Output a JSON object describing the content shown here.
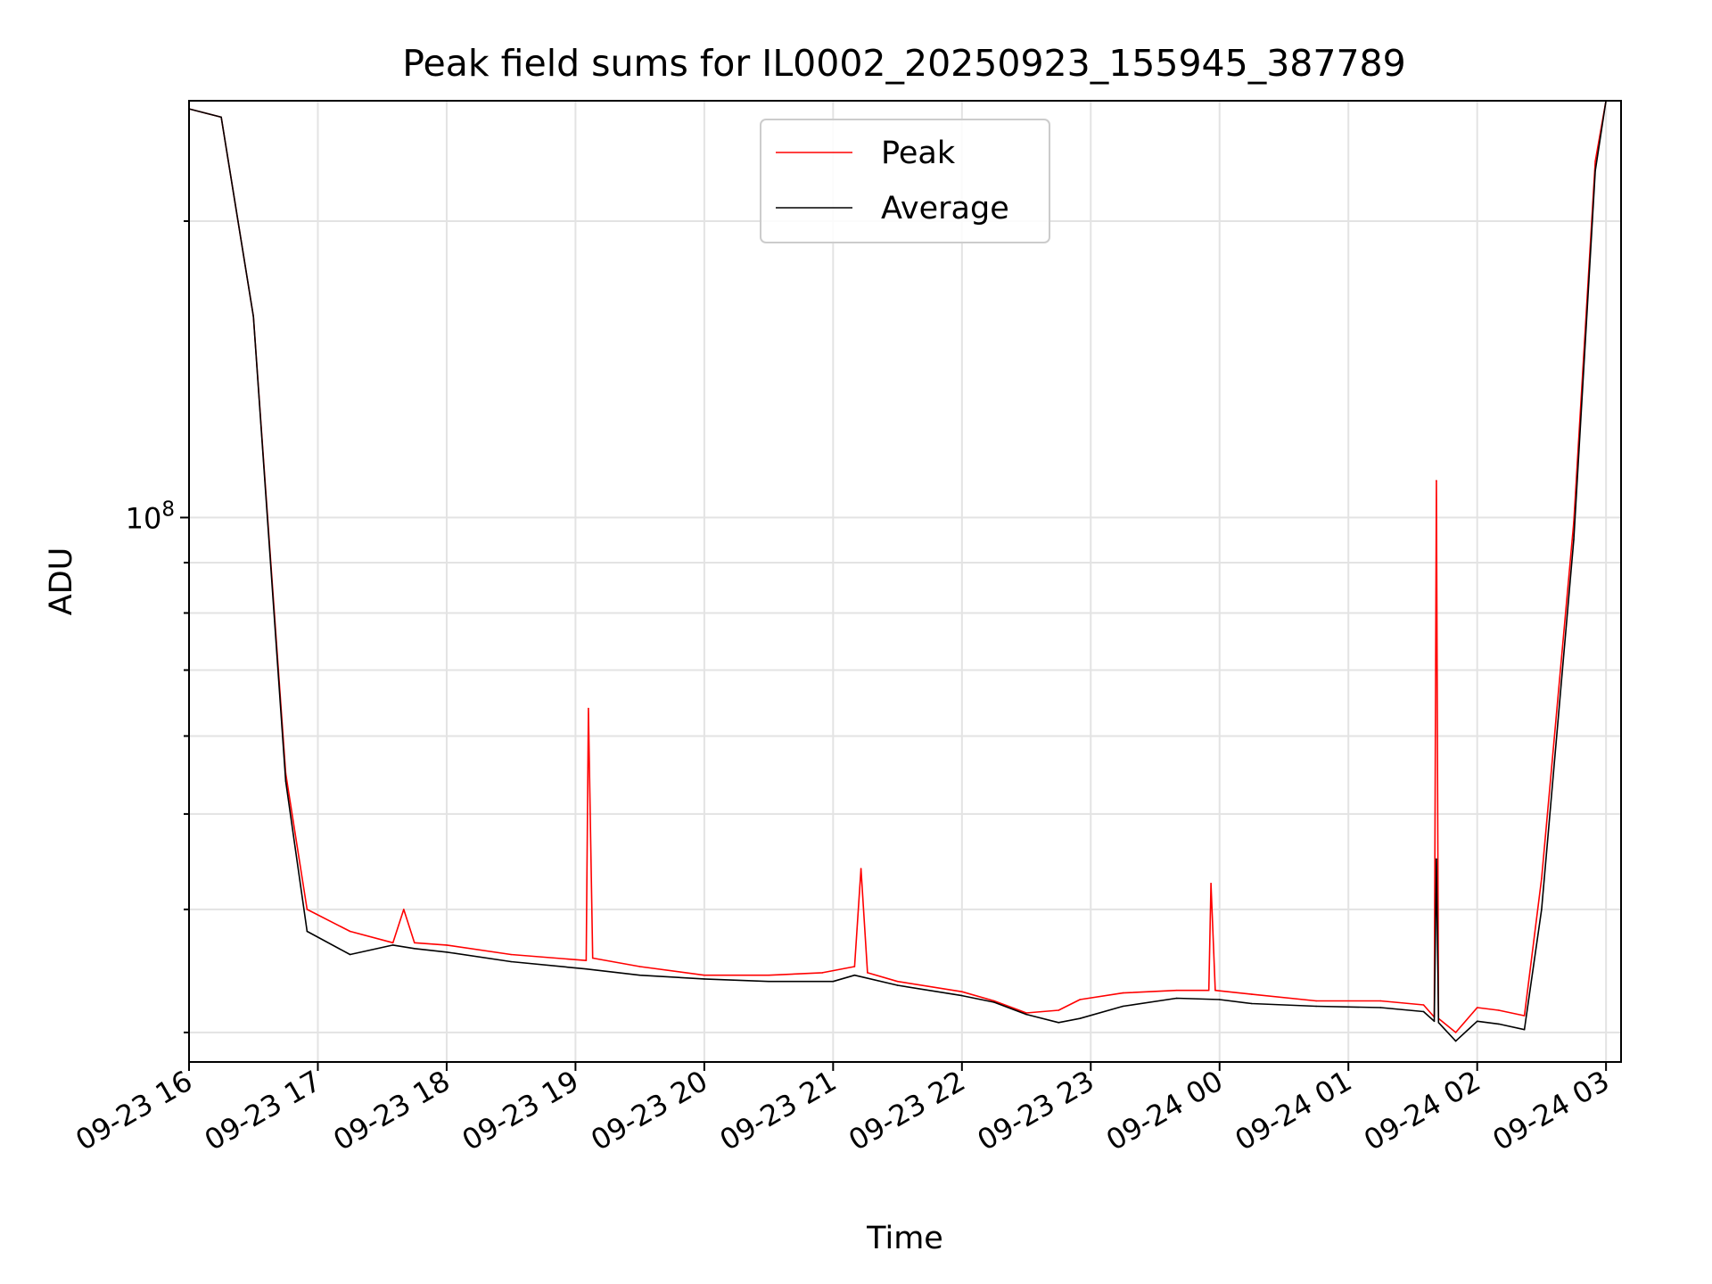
{
  "chart_data": {
    "type": "line",
    "title": "Peak field sums for IL0002_20250923_155945_387789",
    "xlabel": "Time",
    "ylabel": "ADU",
    "x_range": [
      "2025-09-23 16:00",
      "2025-09-24 03:07"
    ],
    "y_scale": "log",
    "y_range": [
      28000000,
      265000000
    ],
    "grid": true,
    "legend": "top-center",
    "x_ticks": [
      "09-23 16",
      "09-23 17",
      "09-23 18",
      "09-23 19",
      "09-23 20",
      "09-23 21",
      "09-23 22",
      "09-23 23",
      "09-24 00",
      "09-24 01",
      "09-24 02",
      "09-24 03"
    ],
    "y_ticks": [
      {
        "value": 100000000,
        "label_base": "10",
        "label_exp": "8"
      }
    ],
    "series": [
      {
        "name": "Peak",
        "color": "#ff0000",
        "x": [
          "2025-09-23 16:00",
          "2025-09-23 16:15",
          "2025-09-23 16:30",
          "2025-09-23 16:45",
          "2025-09-23 16:55",
          "2025-09-23 17:15",
          "2025-09-23 17:35",
          "2025-09-23 17:40",
          "2025-09-23 17:45",
          "2025-09-23 18:00",
          "2025-09-23 18:30",
          "2025-09-23 19:05",
          "2025-09-23 19:06",
          "2025-09-23 19:08",
          "2025-09-23 19:30",
          "2025-09-23 20:00",
          "2025-09-23 20:30",
          "2025-09-23 20:55",
          "2025-09-23 21:10",
          "2025-09-23 21:13",
          "2025-09-23 21:16",
          "2025-09-23 21:30",
          "2025-09-23 22:00",
          "2025-09-23 22:15",
          "2025-09-23 22:30",
          "2025-09-23 22:45",
          "2025-09-23 22:55",
          "2025-09-23 23:15",
          "2025-09-23 23:40",
          "2025-09-23 23:55",
          "2025-09-23 23:56",
          "2025-09-23 23:58",
          "2025-09-24 00:15",
          "2025-09-24 00:45",
          "2025-09-24 01:15",
          "2025-09-24 01:35",
          "2025-09-24 01:40",
          "2025-09-24 01:41",
          "2025-09-24 01:42",
          "2025-09-24 01:50",
          "2025-09-24 02:00",
          "2025-09-24 02:10",
          "2025-09-24 02:22",
          "2025-09-24 02:30",
          "2025-09-24 02:45",
          "2025-09-24 02:55",
          "2025-09-24 03:00"
        ],
        "y": [
          260000000,
          255000000,
          160000000,
          55000000,
          40000000,
          38000000,
          37000000,
          40000000,
          37000000,
          36800000,
          36000000,
          35500000,
          64000000,
          35700000,
          35000000,
          34300000,
          34300000,
          34500000,
          35000000,
          44000000,
          34500000,
          33800000,
          33000000,
          32300000,
          31400000,
          31600000,
          32400000,
          32900000,
          33100000,
          33100000,
          42500000,
          33100000,
          32800000,
          32300000,
          32300000,
          32000000,
          31100000,
          109000000,
          31000000,
          30000000,
          31800000,
          31600000,
          31200000,
          43000000,
          99000000,
          230000000,
          265000000
        ]
      },
      {
        "name": "Average",
        "color": "#000000",
        "x": [
          "2025-09-23 16:00",
          "2025-09-23 16:15",
          "2025-09-23 16:30",
          "2025-09-23 16:45",
          "2025-09-23 16:55",
          "2025-09-23 17:15",
          "2025-09-23 17:35",
          "2025-09-23 17:45",
          "2025-09-23 18:00",
          "2025-09-23 18:30",
          "2025-09-23 19:05",
          "2025-09-23 19:30",
          "2025-09-23 20:00",
          "2025-09-23 20:30",
          "2025-09-23 21:00",
          "2025-09-23 21:10",
          "2025-09-23 21:30",
          "2025-09-23 22:00",
          "2025-09-23 22:15",
          "2025-09-23 22:30",
          "2025-09-23 22:45",
          "2025-09-23 22:55",
          "2025-09-23 23:15",
          "2025-09-23 23:40",
          "2025-09-24 00:00",
          "2025-09-24 00:15",
          "2025-09-24 00:45",
          "2025-09-24 01:15",
          "2025-09-24 01:35",
          "2025-09-24 01:40",
          "2025-09-24 01:41",
          "2025-09-24 01:42",
          "2025-09-24 01:50",
          "2025-09-24 02:00",
          "2025-09-24 02:10",
          "2025-09-24 02:22",
          "2025-09-24 02:30",
          "2025-09-24 02:45",
          "2025-09-24 02:55",
          "2025-09-24 03:00"
        ],
        "y": [
          260000000,
          255000000,
          160000000,
          54000000,
          38000000,
          36000000,
          36800000,
          36500000,
          36200000,
          35400000,
          34800000,
          34300000,
          34000000,
          33800000,
          33800000,
          34300000,
          33500000,
          32700000,
          32200000,
          31300000,
          30700000,
          31000000,
          31900000,
          32500000,
          32400000,
          32100000,
          31900000,
          31800000,
          31500000,
          30800000,
          45000000,
          30700000,
          29400000,
          30800000,
          30600000,
          30200000,
          40000000,
          95000000,
          225000000,
          265000000
        ]
      }
    ]
  }
}
